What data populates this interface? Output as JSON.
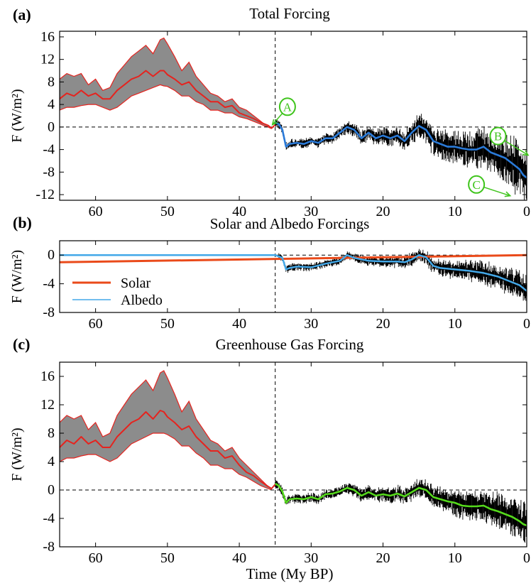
{
  "figure": {
    "xlabel": "Time (My BP)"
  },
  "colors": {
    "band": "#8c8c8c",
    "red": "#e6231e",
    "total": "#2a7ad8",
    "albedo": "#43a8e8",
    "solar": "#ea4a1a",
    "ghg": "#55d91c",
    "annotation": "#3fc41c",
    "noise": "#000000"
  },
  "chart_data": [
    {
      "id": "a",
      "panel_label": "(a)",
      "title": "Total Forcing",
      "type": "area",
      "ylabel": "F (W/m²)",
      "xlim": [
        65,
        0
      ],
      "ylim": [
        -13,
        17
      ],
      "xticks": [
        "60",
        "50",
        "40",
        "30",
        "20",
        "10",
        "0"
      ],
      "yticks": [
        "16",
        "12",
        "8",
        "4",
        "0",
        "-4",
        "-8",
        "-12"
      ],
      "zero_line": true,
      "divider_x": 35,
      "band": {
        "x": [
          65,
          64,
          63,
          62,
          61,
          60,
          59,
          58,
          57,
          56,
          55,
          54,
          53,
          52,
          51,
          50.5,
          50,
          49,
          48,
          47,
          46,
          45,
          44,
          43,
          42,
          41,
          40,
          39,
          38,
          37,
          36.5,
          36,
          35.5
        ],
        "upper": [
          8.5,
          9.5,
          9.0,
          9.5,
          7.5,
          8.5,
          6.5,
          7.0,
          9.5,
          11.0,
          12.5,
          13.5,
          14.5,
          13.0,
          15.5,
          15.8,
          14.8,
          12.5,
          10.0,
          11.5,
          9.0,
          7.5,
          6.0,
          5.5,
          4.5,
          5.0,
          3.5,
          3.0,
          2.0,
          1.0,
          0.5,
          0.2,
          -0.1
        ],
        "lower": [
          3.0,
          3.5,
          3.5,
          3.8,
          4.0,
          4.0,
          3.5,
          3.0,
          3.5,
          4.5,
          5.5,
          6.0,
          6.5,
          7.0,
          7.5,
          7.3,
          7.2,
          6.5,
          5.5,
          5.5,
          4.5,
          4.0,
          3.0,
          3.0,
          2.5,
          2.5,
          1.8,
          1.5,
          1.0,
          0.5,
          0.2,
          0.0,
          -0.3
        ]
      },
      "series": [
        {
          "role": "median",
          "color": "red",
          "x": [
            65,
            64,
            63,
            62,
            61,
            60,
            59,
            58,
            57,
            56,
            55,
            54,
            53,
            52,
            51,
            50.5,
            50,
            49,
            48,
            47,
            46,
            45,
            44,
            43,
            42,
            41,
            40,
            39,
            38,
            37,
            36,
            35.5,
            35
          ],
          "y": [
            5.0,
            6.0,
            5.5,
            6.5,
            5.5,
            6.0,
            5.0,
            5.0,
            6.5,
            7.5,
            8.5,
            9.0,
            10.0,
            9.0,
            10.0,
            10.0,
            9.3,
            8.5,
            7.5,
            8.0,
            6.5,
            5.5,
            4.5,
            4.5,
            3.5,
            3.8,
            2.5,
            2.0,
            1.5,
            0.8,
            0.3,
            -0.2,
            0.4
          ]
        },
        {
          "role": "fit",
          "color": "total",
          "x": [
            35,
            34.5,
            34,
            33.5,
            33,
            32,
            31,
            30,
            29,
            28,
            27,
            26,
            25,
            24,
            23,
            22,
            21,
            20,
            19,
            18,
            17,
            16,
            15,
            14,
            13,
            12,
            11,
            10,
            9,
            8,
            7,
            6,
            5,
            4,
            3,
            2,
            1,
            0.5,
            0
          ],
          "y": [
            0.8,
            0.5,
            -0.5,
            -3.5,
            -3.0,
            -2.8,
            -3.0,
            -2.5,
            -2.8,
            -2.0,
            -2.0,
            -1.0,
            0.0,
            -0.5,
            -2.0,
            -1.0,
            -2.0,
            -1.5,
            -2.0,
            -1.5,
            -2.5,
            -1.0,
            0.2,
            -0.5,
            -2.5,
            -3.0,
            -3.5,
            -3.5,
            -3.8,
            -4.0,
            -4.0,
            -3.5,
            -4.5,
            -5.0,
            -5.5,
            -6.5,
            -7.5,
            -8.5,
            -9.0
          ]
        }
      ],
      "noise": {
        "from": 35,
        "to": 0,
        "base": 0.6,
        "growth": 3.5,
        "seed": 11
      },
      "annotations": [
        {
          "label": "A",
          "x": 33.3,
          "y": 3.6,
          "arrow_to": [
            35.4,
            0.4
          ],
          "rx": 1.35,
          "ry": 1.7
        },
        {
          "label": "B",
          "x": 4.0,
          "y": -1.6,
          "arrow_to": [
            -0.2,
            -5.0
          ],
          "rx": 1.35,
          "ry": 1.7
        },
        {
          "label": "C",
          "x": 7.0,
          "y": -10.2,
          "arrow_to": [
            2.3,
            -12.2
          ],
          "rx": 1.35,
          "ry": 1.7
        }
      ]
    },
    {
      "id": "b",
      "panel_label": "(b)",
      "title": "Solar and Albedo Forcings",
      "type": "line",
      "ylabel": "F (W/m²)",
      "xlim": [
        65,
        0
      ],
      "ylim": [
        -8,
        2
      ],
      "xticks": [
        "60",
        "50",
        "40",
        "30",
        "20",
        "10",
        "0"
      ],
      "yticks": [
        "0",
        "-4",
        "-8"
      ],
      "zero_line": true,
      "divider_x": 35,
      "series": [
        {
          "name": "Solar",
          "color": "solar",
          "width": 3,
          "x": [
            65,
            0
          ],
          "y": [
            -1.0,
            0.0
          ]
        },
        {
          "name": "Albedo",
          "color": "albedo",
          "width": 2.5,
          "x": [
            65,
            35,
            34.5,
            34,
            33.5,
            33,
            32,
            30,
            28,
            26,
            25,
            24,
            22,
            20,
            18,
            17,
            16,
            15,
            14,
            13,
            12,
            10,
            8,
            6,
            4,
            2,
            1,
            0
          ],
          "y": [
            0.0,
            0.0,
            -0.2,
            -0.4,
            -2.0,
            -1.8,
            -1.6,
            -1.7,
            -1.2,
            -0.8,
            0.0,
            -0.4,
            -0.8,
            -0.9,
            -0.9,
            -1.0,
            -0.6,
            0.0,
            -0.3,
            -1.5,
            -1.8,
            -2.0,
            -2.2,
            -2.5,
            -3.0,
            -3.8,
            -4.2,
            -5.0
          ]
        }
      ],
      "noise": {
        "from": 34.5,
        "to": 0,
        "base": 0.4,
        "growth": 1.2,
        "seed": 23
      },
      "legend": {
        "position": "lower-left"
      }
    },
    {
      "id": "c",
      "panel_label": "(c)",
      "title": "Greenhouse Gas Forcing",
      "type": "area",
      "ylabel": "F (W/m²)",
      "xlim": [
        65,
        0
      ],
      "ylim": [
        -8,
        18
      ],
      "xticks": [
        "60",
        "50",
        "40",
        "30",
        "20",
        "10",
        "0"
      ],
      "yticks": [
        "16",
        "12",
        "8",
        "4",
        "0",
        "-4",
        "-8"
      ],
      "zero_line": true,
      "divider_x": 35,
      "band": {
        "x": [
          65,
          64,
          63,
          62,
          61,
          60,
          59,
          58,
          57,
          56,
          55,
          54,
          53,
          52,
          51,
          50.5,
          50,
          49,
          48,
          47,
          46,
          45,
          44,
          43,
          42,
          41,
          40,
          39,
          38,
          37,
          36.5,
          36,
          35.5
        ],
        "upper": [
          9.5,
          10.5,
          10.0,
          10.5,
          8.5,
          9.5,
          7.5,
          8.0,
          10.5,
          12.0,
          13.5,
          14.5,
          15.5,
          14.0,
          16.5,
          16.8,
          15.8,
          13.5,
          11.0,
          12.5,
          10.0,
          8.5,
          7.0,
          6.5,
          5.5,
          6.0,
          4.5,
          3.5,
          2.5,
          1.5,
          1.0,
          0.5,
          0.2
        ],
        "lower": [
          4.0,
          4.5,
          4.5,
          4.8,
          5.0,
          5.0,
          4.5,
          4.0,
          4.5,
          5.5,
          6.5,
          7.0,
          7.5,
          8.0,
          8.0,
          8.0,
          7.8,
          7.2,
          6.2,
          6.2,
          5.2,
          4.5,
          3.5,
          3.5,
          3.0,
          3.0,
          2.2,
          1.8,
          1.2,
          0.6,
          0.4,
          0.2,
          0.0
        ]
      },
      "series": [
        {
          "role": "median",
          "color": "red",
          "x": [
            65,
            64,
            63,
            62,
            61,
            60,
            59,
            58,
            57,
            56,
            55,
            54,
            53,
            52,
            51,
            50.5,
            50,
            49,
            48,
            47,
            46,
            45,
            44,
            43,
            42,
            41,
            40,
            39,
            38,
            37,
            36,
            35.5,
            35
          ],
          "y": [
            6.0,
            7.0,
            6.5,
            7.5,
            6.5,
            7.0,
            6.0,
            6.0,
            7.5,
            8.5,
            9.5,
            10.0,
            11.0,
            10.0,
            11.2,
            11.0,
            10.3,
            9.5,
            8.5,
            9.0,
            7.5,
            6.5,
            5.5,
            5.5,
            4.5,
            4.8,
            3.5,
            2.5,
            2.0,
            1.2,
            0.5,
            0.2,
            0.8
          ]
        },
        {
          "role": "fit",
          "color": "ghg",
          "x": [
            35,
            34.5,
            34,
            33.5,
            33,
            32,
            31,
            30,
            29,
            28,
            27,
            26,
            25,
            24,
            23,
            22,
            21,
            20,
            19,
            18,
            17,
            16,
            15,
            14,
            13,
            12,
            11,
            10,
            9,
            8,
            7,
            6,
            5,
            4,
            3,
            2,
            1,
            0.5,
            0
          ],
          "y": [
            0.9,
            0.6,
            -0.2,
            -1.8,
            -1.3,
            -1.2,
            -1.3,
            -1.0,
            -1.3,
            -0.6,
            -0.5,
            -0.2,
            0.3,
            0.0,
            -0.8,
            -0.3,
            -0.8,
            -0.6,
            -0.8,
            -0.5,
            -0.9,
            -0.3,
            0.3,
            0.0,
            -1.0,
            -1.3,
            -1.6,
            -1.8,
            -2.2,
            -2.3,
            -2.3,
            -2.2,
            -2.7,
            -3.0,
            -3.4,
            -3.8,
            -4.4,
            -4.8,
            -5.0
          ]
        }
      ],
      "noise": {
        "from": 35,
        "to": 0,
        "base": 0.5,
        "growth": 1.8,
        "seed": 37
      }
    }
  ]
}
